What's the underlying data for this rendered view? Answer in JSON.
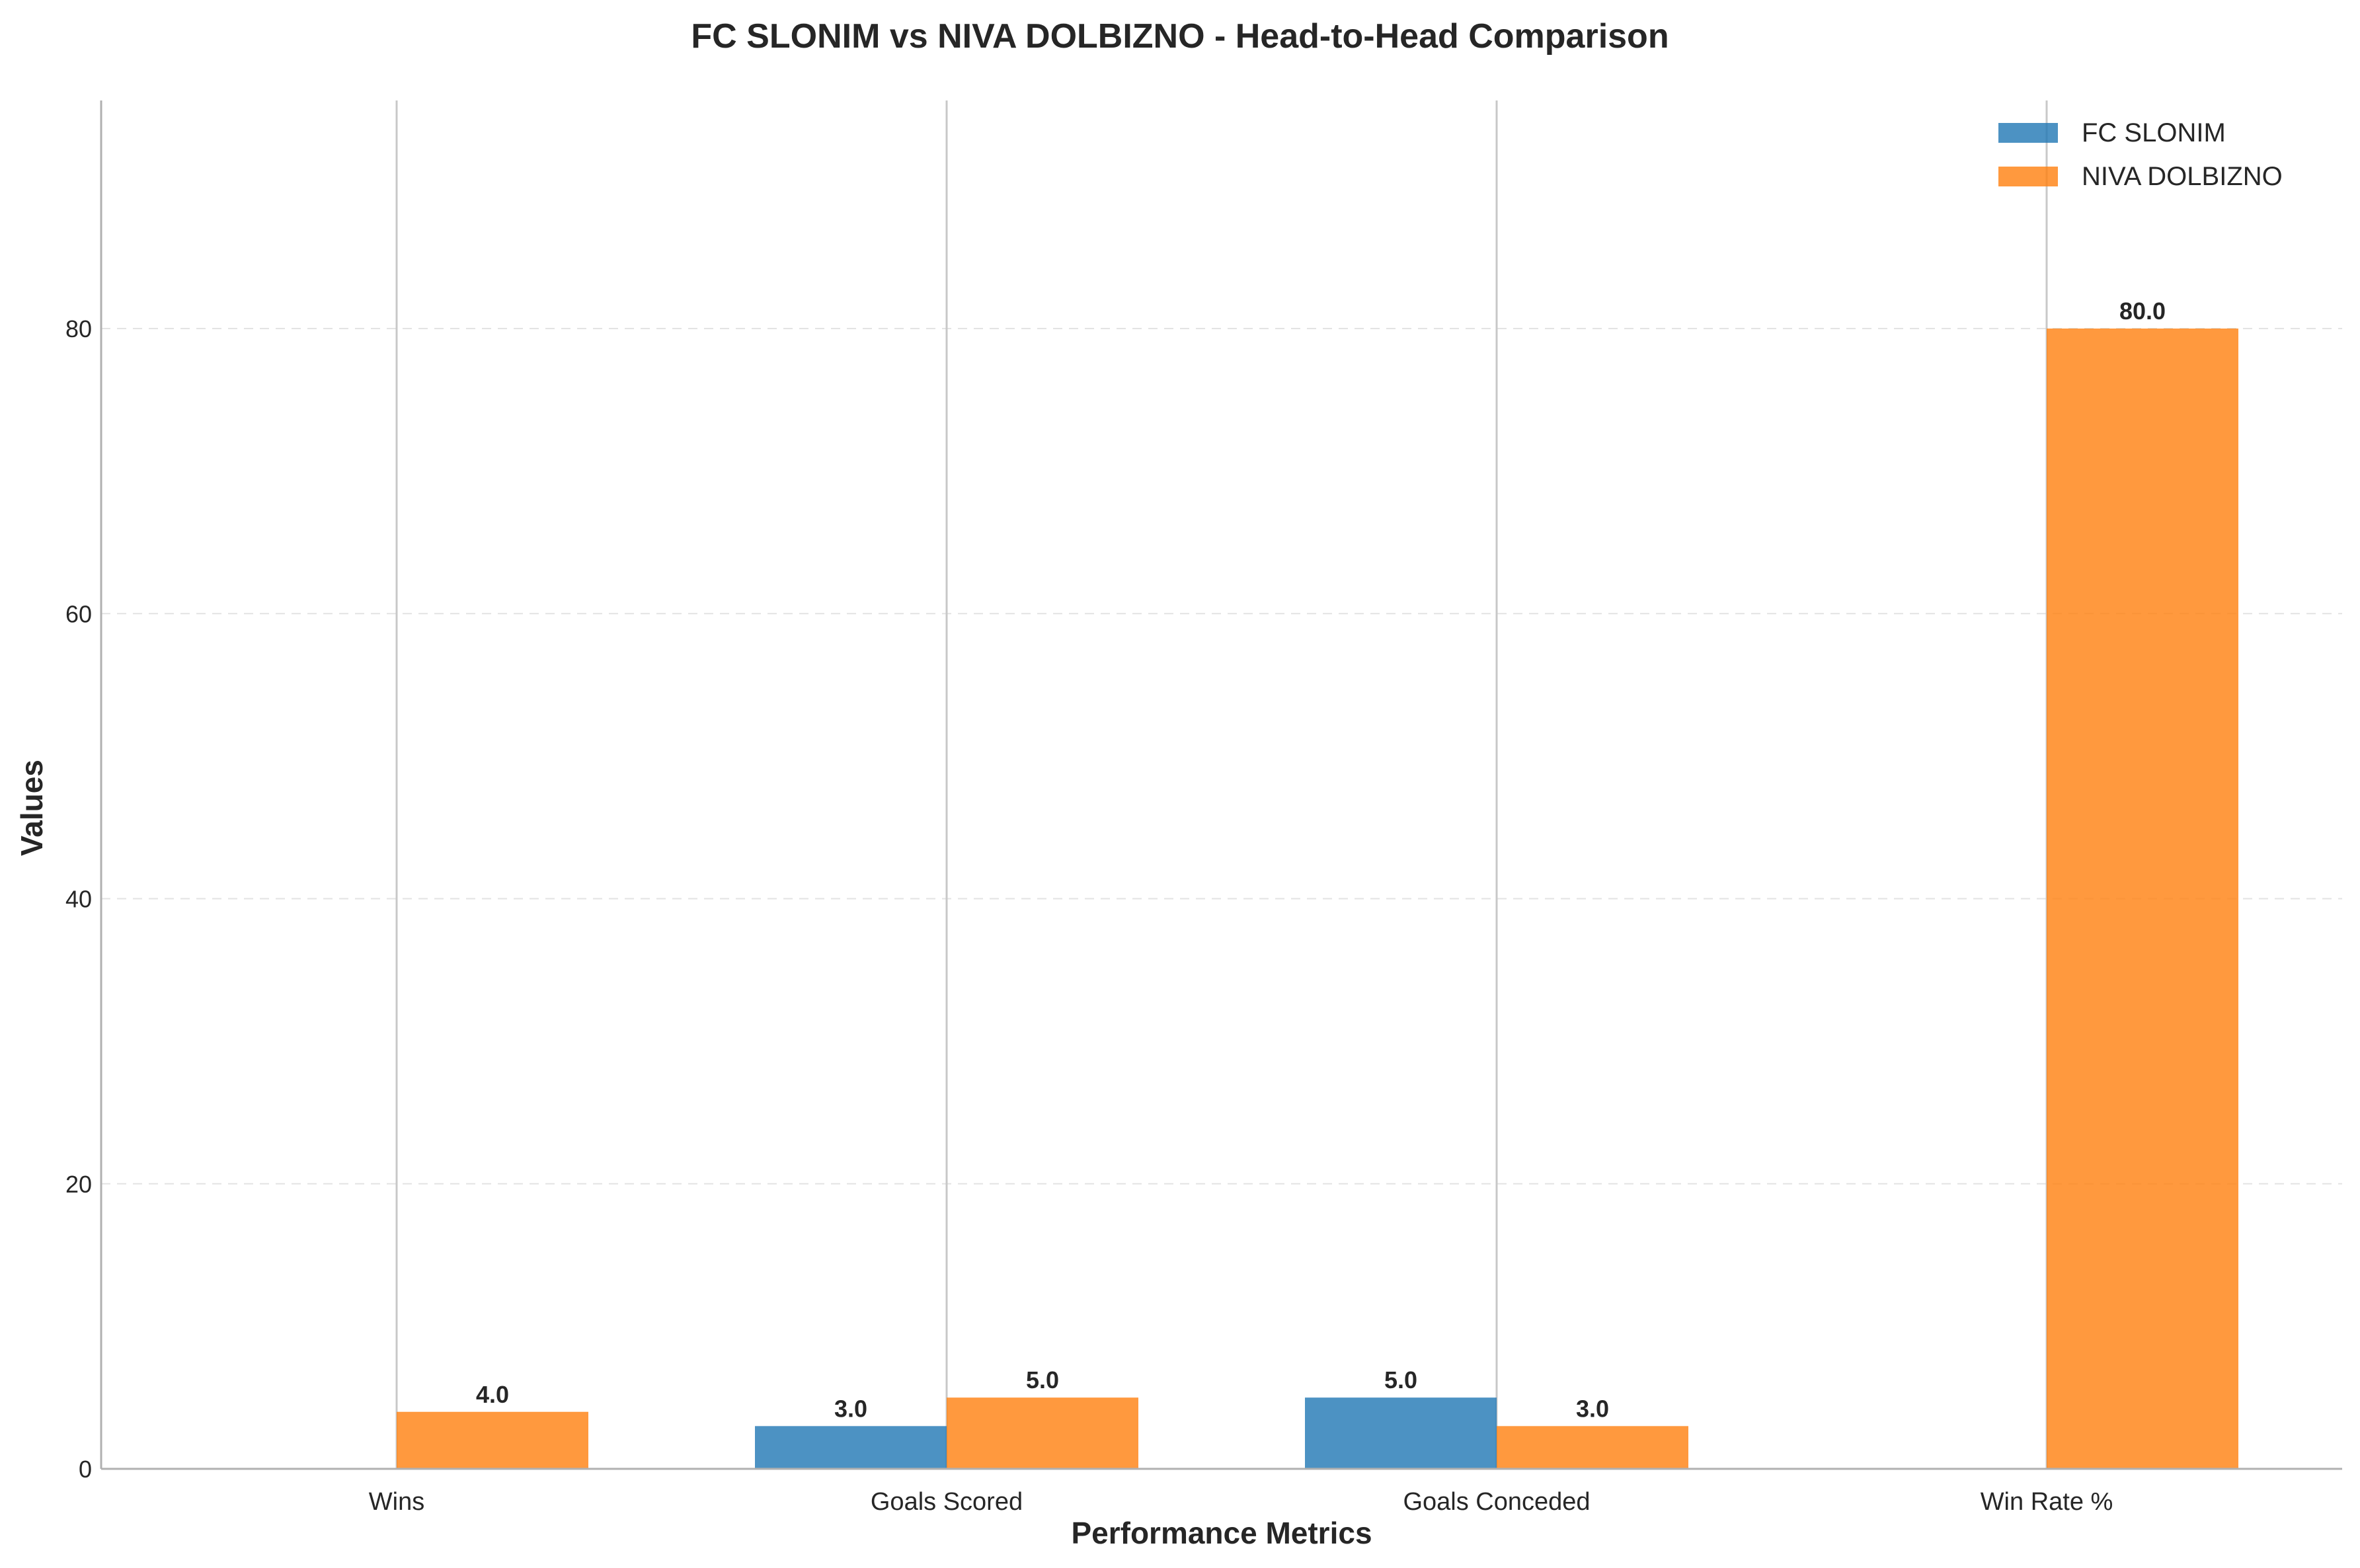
{
  "chart_data": {
    "type": "bar",
    "title": "FC SLONIM vs NIVA DOLBIZNO - Head-to-Head Comparison",
    "xlabel": "Performance Metrics",
    "ylabel": "Values",
    "categories": [
      "Wins",
      "Goals Scored",
      "Goals Conceded",
      "Win Rate %"
    ],
    "series": [
      {
        "name": "FC SLONIM",
        "color": "#1f77b4",
        "values": [
          0,
          3,
          5,
          0
        ]
      },
      {
        "name": "NIVA DOLBIZNO",
        "color": "#ff7f0e",
        "values": [
          4,
          5,
          3,
          80
        ]
      }
    ],
    "value_labels": [
      [
        "",
        "3.0",
        "5.0",
        ""
      ],
      [
        "4.0",
        "5.0",
        "3.0",
        "80.0"
      ]
    ],
    "ylim": [
      0,
      96
    ],
    "yticks": [
      0,
      20,
      40,
      60,
      80
    ],
    "ytick_labels": [
      "0",
      "20",
      "40",
      "60",
      "80"
    ],
    "grid": {
      "y": true,
      "x_category_lines": true
    },
    "legend_position": "top-right"
  }
}
